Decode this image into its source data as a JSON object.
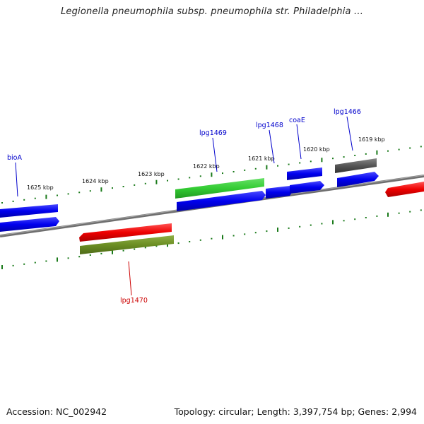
{
  "title": "Legionella pneumophila subsp. pneumophila str. Philadelphia ...",
  "footer": {
    "accession": "Accession: NC_002942",
    "summary": "Topology: circular; Length: 3,397,754 bp; Genes: 2,994"
  },
  "kbp_labels": [
    "1625 kbp",
    "1624 kbp",
    "1623 kbp",
    "1622 kbp",
    "1621 kbp",
    "1620 kbp",
    "1619 kbp"
  ],
  "gene_labels": [
    "bioA",
    "lpg1469",
    "lpg1468",
    "coaE",
    "lpg1466",
    "lpg1470"
  ],
  "colors": {
    "blue": "#0000ff",
    "green": "#33cc33",
    "red": "#ee0000",
    "olive": "#6b8e23",
    "gray": "#555555",
    "backbone": "#777777",
    "ticks": "#1a7a1a",
    "label_blue": "#0000cc",
    "label_red": "#cc0000"
  }
}
